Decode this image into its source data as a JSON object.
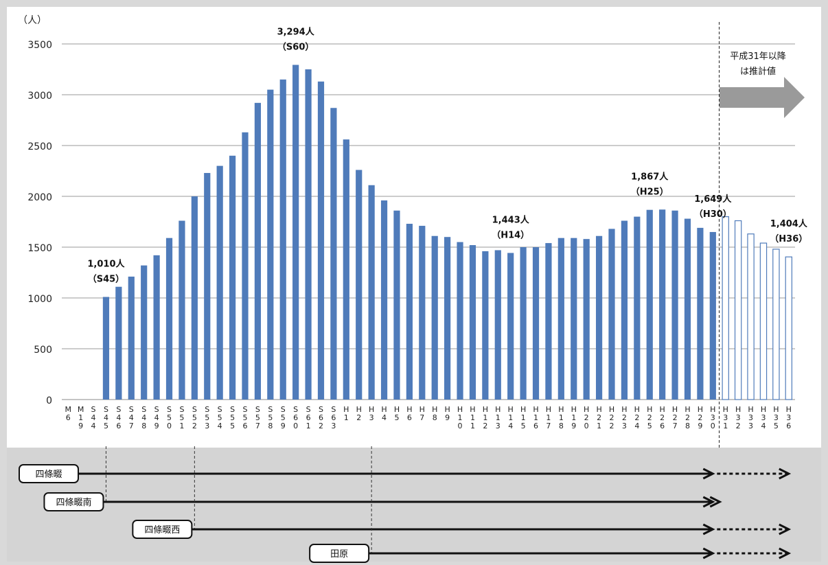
{
  "chart_data": {
    "type": "bar",
    "unit_label": "（人）",
    "ylim": [
      0,
      3500
    ],
    "y_ticks": [
      0,
      500,
      1000,
      1500,
      2000,
      2500,
      3000,
      3500
    ],
    "grid": true,
    "categories": [
      "M6",
      "M19",
      "S44",
      "S45",
      "S46",
      "S47",
      "S48",
      "S49",
      "S50",
      "S51",
      "S52",
      "S53",
      "S54",
      "S55",
      "S56",
      "S57",
      "S58",
      "S59",
      "S60",
      "S61",
      "S62",
      "S63",
      "H1",
      "H2",
      "H3",
      "H4",
      "H5",
      "H6",
      "H7",
      "H8",
      "H9",
      "H10",
      "H11",
      "H12",
      "H13",
      "H14",
      "H15",
      "H16",
      "H17",
      "H18",
      "H19",
      "H20",
      "H21",
      "H22",
      "H23",
      "H24",
      "H25",
      "H26",
      "H27",
      "H28",
      "H29",
      "H30",
      "H31",
      "H32",
      "H33",
      "H34",
      "H35",
      "H36"
    ],
    "values": [
      null,
      null,
      null,
      1010,
      1110,
      1210,
      1320,
      1420,
      1590,
      1760,
      2000,
      2230,
      2300,
      2400,
      2630,
      2920,
      3050,
      3150,
      3294,
      3250,
      3130,
      2870,
      2560,
      2260,
      2110,
      1960,
      1860,
      1730,
      1710,
      1610,
      1600,
      1550,
      1520,
      1460,
      1470,
      1443,
      1500,
      1500,
      1540,
      1590,
      1590,
      1580,
      1610,
      1680,
      1760,
      1800,
      1867,
      1870,
      1860,
      1780,
      1690,
      1649,
      1800,
      1760,
      1630,
      1540,
      1480,
      1404
    ],
    "estimate_from_index": 52,
    "annotations": [
      {
        "index": 3,
        "value_text": "1,010人",
        "period_text": "（S45）"
      },
      {
        "index": 18,
        "value_text": "3,294人",
        "period_text": "（S60）"
      },
      {
        "index": 35,
        "value_text": "1,443人",
        "period_text": "（H14）"
      },
      {
        "index": 46,
        "value_text": "1,867人",
        "period_text": "（H25）"
      },
      {
        "index": 51,
        "value_text": "1,649人",
        "period_text": "（H30）"
      },
      {
        "index": 57,
        "value_text": "1,404人",
        "period_text": "（H36）"
      }
    ],
    "estimate_note_lines": [
      "平成31年以降",
      "は推計値"
    ],
    "timelines": [
      {
        "label": "四條畷",
        "start_index": -1,
        "end_index": 51,
        "dotted_to_index": 57
      },
      {
        "label": "四條畷南",
        "start_index": 3,
        "end_index": 51,
        "dotted_to_index": null
      },
      {
        "label": "四條畷西",
        "start_index": 10,
        "end_index": 51,
        "dotted_to_index": 57
      },
      {
        "label": "田原",
        "start_index": 24,
        "end_index": 51,
        "dotted_to_index": 57
      }
    ]
  },
  "colors": {
    "bar": "#4f7bba",
    "bar_estimate_stroke": "#4f7bba",
    "arrow": "#9a9a9a",
    "background_lower": "#d4d4d4",
    "frame": "#d9d9d9"
  }
}
